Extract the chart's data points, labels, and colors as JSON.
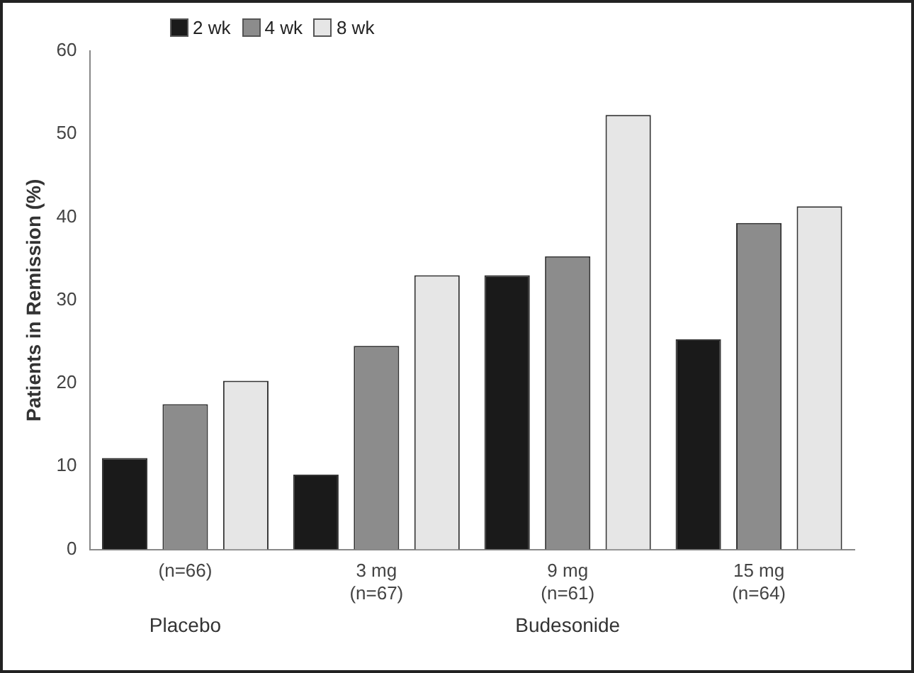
{
  "chart_data": {
    "type": "bar",
    "ylabel": "Patients in Remission (%)",
    "categories": [
      "(n=66)",
      "3 mg\n(n=67)",
      "9 mg\n(n=61)",
      "15 mg\n(n=64)"
    ],
    "series": [
      {
        "name": "2 wk",
        "color": "#1a1a1a",
        "values": [
          11,
          9,
          33,
          25.3
        ]
      },
      {
        "name": "4 wk",
        "color": "#8c8c8c",
        "values": [
          17.5,
          24.5,
          35.3,
          39.3
        ]
      },
      {
        "name": "8 wk",
        "color": "#e6e6e6",
        "values": [
          20.3,
          33,
          52.3,
          41.3
        ]
      }
    ],
    "ylim": [
      0,
      60
    ],
    "yticks": [
      0,
      10,
      20,
      30,
      40,
      50,
      60
    ],
    "grid": false,
    "legend": "top left",
    "annotations": [
      "Placebo",
      "Budesonide"
    ]
  }
}
